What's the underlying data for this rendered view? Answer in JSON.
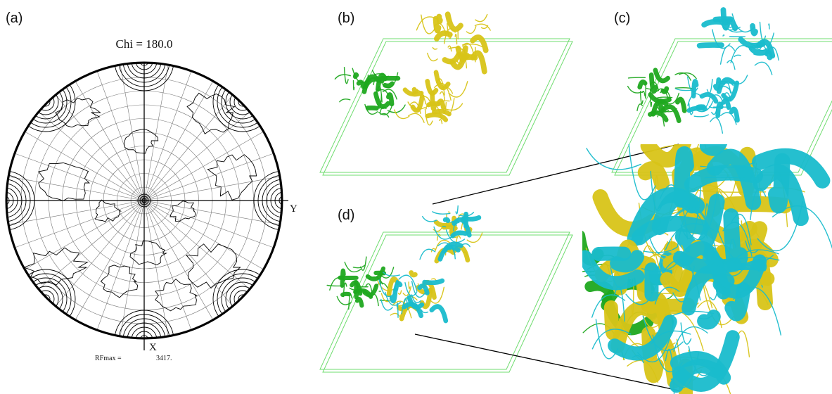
{
  "panels": {
    "a": {
      "label": "(a)",
      "title": "Chi =  180.0",
      "axis_y": "Y",
      "axis_x": "X",
      "rfmax_label": "RFmax =",
      "rfmax_value": "3417."
    },
    "b": {
      "label": "(b)"
    },
    "c": {
      "label": "(c)"
    },
    "d": {
      "label": "(d)"
    }
  }
}
